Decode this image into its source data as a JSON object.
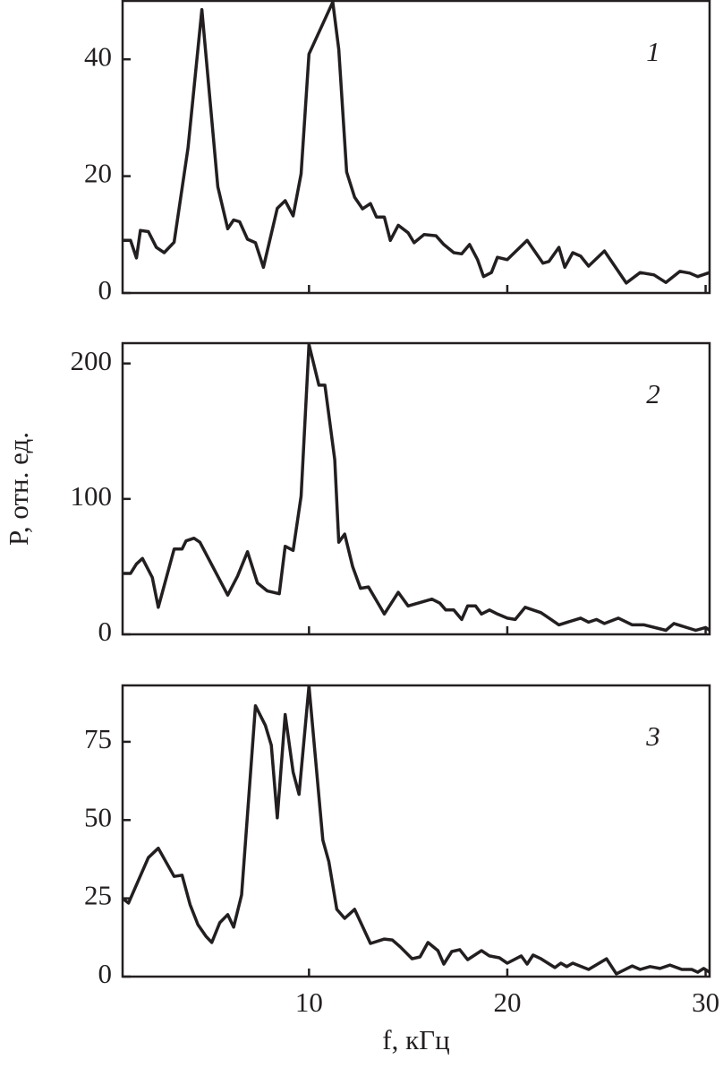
{
  "chart_data": [
    {
      "type": "line",
      "annotation": "1",
      "color": "#231f20",
      "x": [
        0.6,
        1.0,
        1.3,
        1.5,
        1.9,
        2.3,
        2.7,
        3.2,
        3.9,
        4.6,
        5.4,
        5.9,
        6.2,
        6.5,
        6.9,
        7.3,
        7.7,
        8.4,
        8.8,
        9.2,
        9.6,
        10.0,
        11.2,
        11.5,
        11.9,
        12.3,
        12.7,
        13.1,
        13.4,
        13.8,
        14.1,
        14.5,
        15.0,
        15.3,
        15.8,
        16.4,
        16.8,
        17.3,
        17.7,
        18.1,
        18.5,
        18.8,
        19.2,
        19.5,
        20.0,
        21.0,
        21.8,
        22.1,
        22.6,
        22.9,
        23.3,
        23.7,
        24.1,
        24.9,
        26.0,
        26.7,
        27.4,
        28.0,
        28.7,
        29.2,
        29.6,
        30.2
      ],
      "values": [
        9,
        9,
        6,
        10.7,
        10.5,
        7.8,
        6.9,
        8.7,
        24.8,
        48.5,
        18.2,
        11,
        12.5,
        12.2,
        9.2,
        8.6,
        4.4,
        14.5,
        15.8,
        13.2,
        20.4,
        40.9,
        49.8,
        41.7,
        20.7,
        16.4,
        14.4,
        15.3,
        13.0,
        13.0,
        9.0,
        11.6,
        10.3,
        8.6,
        10.0,
        9.8,
        8.3,
        6.9,
        6.7,
        8.3,
        5.7,
        2.8,
        3.5,
        6.1,
        5.7,
        9.0,
        5.1,
        5.4,
        7.8,
        4.4,
        6.9,
        6.3,
        4.6,
        7.2,
        1.7,
        3.5,
        3.1,
        1.8,
        3.7,
        3.4,
        2.8,
        3.5
      ],
      "xlim": [
        0.6,
        30.2
      ],
      "xticks": [
        10,
        20,
        30
      ],
      "show_xtick_labels": false,
      "ylim": [
        0,
        50
      ],
      "yticks": [
        0,
        20,
        40
      ]
    },
    {
      "type": "line",
      "annotation": "2",
      "color": "#231f20",
      "ylabel": "P, отн. ед.",
      "x": [
        0.6,
        1.0,
        1.3,
        1.6,
        2.1,
        2.4,
        3.2,
        3.6,
        3.8,
        4.2,
        4.5,
        5.9,
        6.4,
        6.9,
        7.4,
        7.9,
        8.5,
        8.8,
        9.2,
        9.6,
        10.0,
        10.5,
        10.8,
        11.3,
        11.5,
        11.8,
        12.2,
        12.6,
        13.0,
        13.8,
        14.5,
        15.0,
        16.2,
        16.6,
        16.9,
        17.3,
        17.7,
        18.0,
        18.4,
        18.7,
        19.1,
        19.5,
        20.0,
        20.4,
        20.9,
        21.7,
        22.0,
        22.6,
        23.7,
        24.1,
        24.5,
        24.9,
        25.6,
        26.3,
        26.9,
        28.0,
        28.4,
        29.5,
        30.0,
        30.2
      ],
      "values": [
        45,
        45,
        52,
        56,
        42,
        20,
        63,
        63,
        69,
        71,
        68,
        29,
        43,
        61,
        38,
        32,
        30,
        65,
        62,
        102,
        214,
        184,
        184,
        129,
        68,
        74,
        50,
        34,
        35,
        15,
        31,
        21,
        26,
        23,
        18,
        18,
        11,
        21,
        21,
        15,
        18,
        15,
        12,
        11,
        20,
        16,
        13,
        7,
        12,
        9,
        11,
        8,
        12,
        7,
        7,
        3,
        8,
        3,
        5,
        3
      ],
      "xlim": [
        0.6,
        30.2
      ],
      "xticks": [
        10,
        20,
        30
      ],
      "show_xtick_labels": false,
      "ylim": [
        0,
        215
      ],
      "yticks": [
        0,
        100,
        200
      ]
    },
    {
      "type": "line",
      "annotation": "3",
      "color": "#231f20",
      "xlabel": "f, кГц",
      "x": [
        0.6,
        0.9,
        1.9,
        2.4,
        3.2,
        3.6,
        4.0,
        4.4,
        4.8,
        5.1,
        5.5,
        5.9,
        6.2,
        6.6,
        7.3,
        7.8,
        8.1,
        8.4,
        8.8,
        9.2,
        9.5,
        10.0,
        10.7,
        11.0,
        11.4,
        11.8,
        12.3,
        13.1,
        13.8,
        14.2,
        14.6,
        15.2,
        15.6,
        16.0,
        16.5,
        16.8,
        17.2,
        17.6,
        18.0,
        18.7,
        19.1,
        19.6,
        20.0,
        20.7,
        21.0,
        21.3,
        21.7,
        22.4,
        22.7,
        23.0,
        23.3,
        24.1,
        25.0,
        25.5,
        26.3,
        26.7,
        27.2,
        27.7,
        28.2,
        28.8,
        29.3,
        29.6,
        29.9,
        30.2
      ],
      "values": [
        25,
        23.5,
        38,
        41,
        32,
        32.4,
        23,
        16.6,
        12.9,
        10.9,
        17.2,
        19.8,
        15.8,
        26.1,
        86.5,
        80.2,
        73.9,
        50.7,
        83.7,
        65.3,
        58.2,
        92.8,
        43.6,
        36.7,
        21.5,
        18.6,
        21.5,
        10.6,
        12.0,
        11.7,
        9.5,
        5.7,
        6.3,
        10.9,
        8.3,
        4.0,
        8.0,
        8.6,
        5.4,
        8.3,
        6.6,
        6.0,
        4.3,
        6.6,
        4.0,
        6.9,
        5.7,
        2.9,
        4.3,
        3.2,
        4.3,
        2.3,
        5.7,
        0.9,
        3.4,
        2.3,
        3.2,
        2.6,
        3.7,
        2.3,
        2.3,
        1.4,
        2.6,
        1.4
      ],
      "xlim": [
        0.6,
        30.2
      ],
      "xticks": [
        10,
        20,
        30
      ],
      "show_xtick_labels": true,
      "ylim": [
        0,
        93
      ],
      "yticks": [
        0,
        25,
        50,
        75
      ]
    }
  ]
}
